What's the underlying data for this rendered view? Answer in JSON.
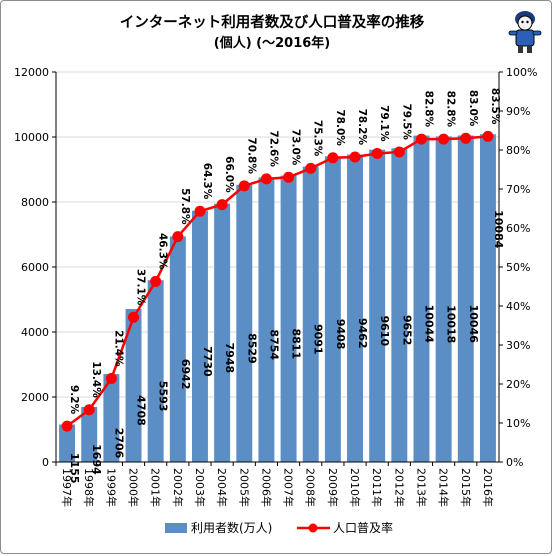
{
  "title_line1": "インターネット利用者数及び人口普及率の推移",
  "title_line2": "(個人) (～2016年)",
  "legend": {
    "bar_label": "利用者数(万人)",
    "line_label": "人口普及率"
  },
  "colors": {
    "bar": "#5b8ec4",
    "line": "#ff0000",
    "axis": "#000000",
    "grid": "#d9d9d9"
  },
  "chart_data": {
    "type": "bar",
    "categories": [
      "1997年",
      "1998年",
      "1999年",
      "2000年",
      "2001年",
      "2002年",
      "2003年",
      "2004年",
      "2005年",
      "2006年",
      "2007年",
      "2008年",
      "2009年",
      "2010年",
      "2011年",
      "2012年",
      "2013年",
      "2014年",
      "2015年",
      "2016年"
    ],
    "series": [
      {
        "name": "利用者数(万人)",
        "type": "bar",
        "axis": "left",
        "values": [
          1155,
          1694,
          2706,
          4708,
          5593,
          6942,
          7730,
          7948,
          8529,
          8754,
          8811,
          9091,
          9408,
          9462,
          9610,
          9652,
          10044,
          10018,
          10046,
          10084
        ],
        "labels": [
          "1155",
          "1694",
          "2706",
          "4708",
          "5593",
          "6942",
          "7730",
          "7948",
          "8529",
          "8754",
          "8811",
          "9091",
          "9408",
          "9462",
          "9610",
          "9652",
          "10044",
          "10018",
          "10046",
          "10084"
        ]
      },
      {
        "name": "人口普及率",
        "type": "line",
        "axis": "right",
        "values": [
          9.2,
          13.4,
          21.4,
          37.1,
          46.3,
          57.8,
          64.3,
          66.0,
          70.8,
          72.6,
          73.0,
          75.3,
          78.0,
          78.2,
          79.1,
          79.5,
          82.8,
          82.8,
          83.0,
          83.5
        ],
        "labels": [
          "9.2%",
          "13.4%",
          "21.4%",
          "37.1%",
          "46.3%",
          "57.8%",
          "64.3%",
          "66.0%",
          "70.8%",
          "72.6%",
          "73.0%",
          "75.3%",
          "78.0%",
          "78.2%",
          "79.1%",
          "79.5%",
          "82.8%",
          "82.8%",
          "83.0%",
          "83.5%"
        ]
      }
    ],
    "y_left": {
      "min": 0,
      "max": 12000,
      "ticks": [
        "0",
        "2000",
        "4000",
        "6000",
        "8000",
        "10000",
        "12000"
      ]
    },
    "y_right": {
      "min": 0,
      "max": 100,
      "ticks": [
        "0%",
        "10%",
        "20%",
        "30%",
        "40%",
        "50%",
        "60%",
        "70%",
        "80%",
        "90%",
        "100%"
      ]
    },
    "grid": true,
    "legend_position": "bottom"
  }
}
